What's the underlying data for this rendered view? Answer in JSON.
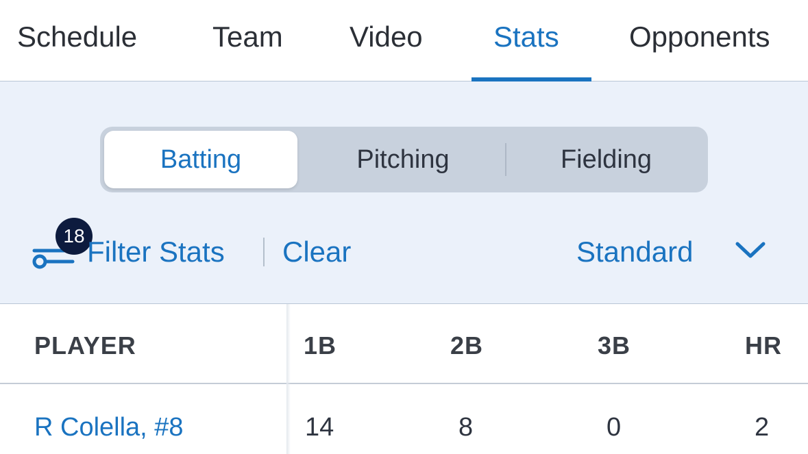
{
  "tabs": [
    {
      "label": "Schedule",
      "active": false
    },
    {
      "label": "Team",
      "active": false
    },
    {
      "label": "Video",
      "active": false
    },
    {
      "label": "Stats",
      "active": true
    },
    {
      "label": "Opponents",
      "active": false
    }
  ],
  "segments": [
    {
      "label": "Batting",
      "active": true
    },
    {
      "label": "Pitching",
      "active": false
    },
    {
      "label": "Fielding",
      "active": false
    }
  ],
  "filter": {
    "badge_count": "18",
    "label": "Filter Stats",
    "clear_label": "Clear",
    "view_select": "Standard"
  },
  "table": {
    "columns": [
      "PLAYER",
      "1B",
      "2B",
      "3B",
      "HR"
    ],
    "rows": [
      {
        "player": "R Colella, #8",
        "1b": "14",
        "2b": "8",
        "3b": "0",
        "hr": "2"
      }
    ]
  },
  "colors": {
    "accent": "#1a73c0",
    "badge": "#0d1b3e",
    "panel_bg": "#ebf1fa",
    "segment_bg": "#c8d1dd"
  },
  "icons": {
    "filter": "filter-sliders-icon",
    "dropdown": "chevron-down-icon"
  }
}
